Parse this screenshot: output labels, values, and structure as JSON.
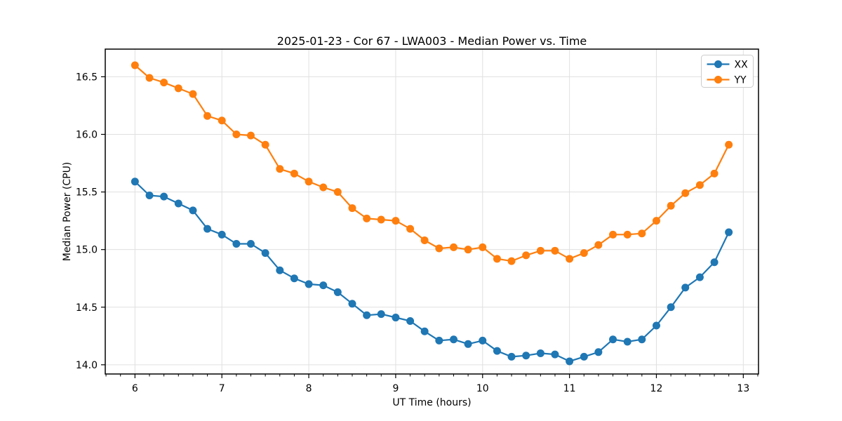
{
  "chart_data": {
    "type": "line",
    "title": "2025-01-23 - Cor 67 - LWA003 - Median Power vs. Time",
    "xlabel": "UT Time (hours)",
    "ylabel": "Median Power (CPU)",
    "x": [
      6.0,
      6.167,
      6.333,
      6.5,
      6.667,
      6.833,
      7.0,
      7.167,
      7.333,
      7.5,
      7.667,
      7.833,
      8.0,
      8.167,
      8.333,
      8.5,
      8.667,
      8.833,
      9.0,
      9.167,
      9.333,
      9.5,
      9.667,
      9.833,
      10.0,
      10.167,
      10.333,
      10.5,
      10.667,
      10.833,
      11.0,
      11.167,
      11.333,
      11.5,
      11.667,
      11.833,
      12.0,
      12.167,
      12.333,
      12.5,
      12.667,
      12.833
    ],
    "series": [
      {
        "name": "XX",
        "color": "#1f77b4",
        "values": [
          15.59,
          15.47,
          15.46,
          15.4,
          15.34,
          15.18,
          15.13,
          15.05,
          15.05,
          14.97,
          14.82,
          14.75,
          14.7,
          14.69,
          14.63,
          14.53,
          14.43,
          14.44,
          14.41,
          14.38,
          14.29,
          14.21,
          14.22,
          14.18,
          14.21,
          14.12,
          14.07,
          14.08,
          14.1,
          14.09,
          14.03,
          14.07,
          14.11,
          14.22,
          14.2,
          14.22,
          14.34,
          14.5,
          14.67,
          14.76,
          14.89,
          15.15
        ]
      },
      {
        "name": "YY",
        "color": "#ff7f0e",
        "values": [
          16.6,
          16.49,
          16.45,
          16.4,
          16.35,
          16.16,
          16.12,
          16.0,
          15.99,
          15.91,
          15.7,
          15.66,
          15.59,
          15.54,
          15.5,
          15.36,
          15.27,
          15.26,
          15.25,
          15.18,
          15.08,
          15.01,
          15.02,
          15.0,
          15.02,
          14.92,
          14.9,
          14.95,
          14.99,
          14.99,
          14.92,
          14.97,
          15.04,
          15.13,
          15.13,
          15.14,
          15.25,
          15.38,
          15.49,
          15.56,
          15.66,
          15.91
        ]
      }
    ],
    "xlim": [
      5.658,
      13.175
    ],
    "ylim": [
      13.92,
      16.74
    ],
    "xticks": [
      6,
      7,
      8,
      9,
      10,
      11,
      12,
      13
    ],
    "yticks": [
      14.0,
      14.5,
      15.0,
      15.5,
      16.0,
      16.5
    ],
    "minor_xtick_step": 0.1666667,
    "grid": true,
    "grid_color": "#e0e0e0",
    "spine_color": "#000000",
    "background": "#ffffff",
    "legend": {
      "position": "upper right",
      "entries": [
        "XX",
        "YY"
      ]
    },
    "marker": "circle"
  }
}
